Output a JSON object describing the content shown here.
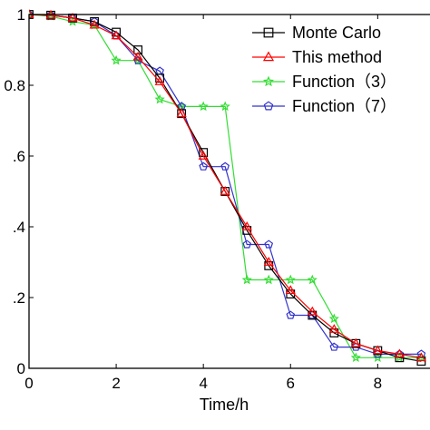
{
  "chart_data": {
    "type": "line",
    "title": "",
    "xlabel": "Time/h",
    "ylabel": "",
    "xlim": [
      0,
      9.2
    ],
    "ylim": [
      0,
      1
    ],
    "grid": false,
    "legend_position": "top-right",
    "x_ticks": [
      0,
      2,
      4,
      6,
      8
    ],
    "x_tick_labels": [
      "0",
      "2",
      "4",
      "6",
      "8"
    ],
    "y_ticks": [
      0,
      0.2,
      0.4,
      0.6,
      0.8,
      1
    ],
    "y_tick_labels": [
      "0",
      ".2",
      ".4",
      ".6",
      "0.8",
      "1"
    ],
    "series": [
      {
        "name": "Monte Carlo",
        "color": "#000000",
        "marker": "square",
        "x": [
          0,
          0.5,
          1,
          1.5,
          2,
          2.5,
          3,
          3.5,
          4,
          4.5,
          5,
          5.5,
          6,
          6.5,
          7,
          7.5,
          8,
          8.5,
          9
        ],
        "y": [
          1.0,
          0.998,
          0.99,
          0.98,
          0.95,
          0.9,
          0.82,
          0.72,
          0.61,
          0.5,
          0.39,
          0.29,
          0.21,
          0.15,
          0.1,
          0.07,
          0.05,
          0.03,
          0.02
        ]
      },
      {
        "name": "This method",
        "color": "#ff0000",
        "marker": "triangle",
        "x": [
          0,
          0.5,
          1,
          1.5,
          2,
          2.5,
          3,
          3.5,
          4,
          4.5,
          5,
          5.5,
          6,
          6.5,
          7,
          7.5,
          8,
          8.5,
          9
        ],
        "y": [
          1.0,
          0.998,
          0.99,
          0.97,
          0.94,
          0.88,
          0.81,
          0.72,
          0.6,
          0.5,
          0.4,
          0.3,
          0.22,
          0.16,
          0.11,
          0.07,
          0.05,
          0.04,
          0.03
        ]
      },
      {
        "name": "Function（3）",
        "color": "#33dd33",
        "marker": "star",
        "x": [
          0,
          0.5,
          1,
          1.5,
          2,
          2.5,
          3,
          3.5,
          4,
          4.5,
          5,
          5.5,
          6,
          6.5,
          7,
          7.5,
          8,
          8.5,
          9
        ],
        "y": [
          1.0,
          0.995,
          0.98,
          0.97,
          0.87,
          0.87,
          0.76,
          0.74,
          0.74,
          0.74,
          0.25,
          0.25,
          0.25,
          0.25,
          0.14,
          0.03,
          0.03,
          0.03,
          0.03
        ]
      },
      {
        "name": "Function（7）",
        "color": "#3333cc",
        "marker": "pentagon",
        "x": [
          0,
          0.5,
          1,
          1.5,
          2,
          2.5,
          3,
          3.5,
          4,
          4.5,
          5,
          5.5,
          6,
          6.5,
          7,
          7.5,
          8,
          8.5,
          9
        ],
        "y": [
          1.0,
          0.998,
          0.99,
          0.98,
          0.94,
          0.87,
          0.84,
          0.74,
          0.57,
          0.57,
          0.35,
          0.35,
          0.15,
          0.15,
          0.06,
          0.06,
          0.04,
          0.04,
          0.04
        ]
      }
    ]
  }
}
